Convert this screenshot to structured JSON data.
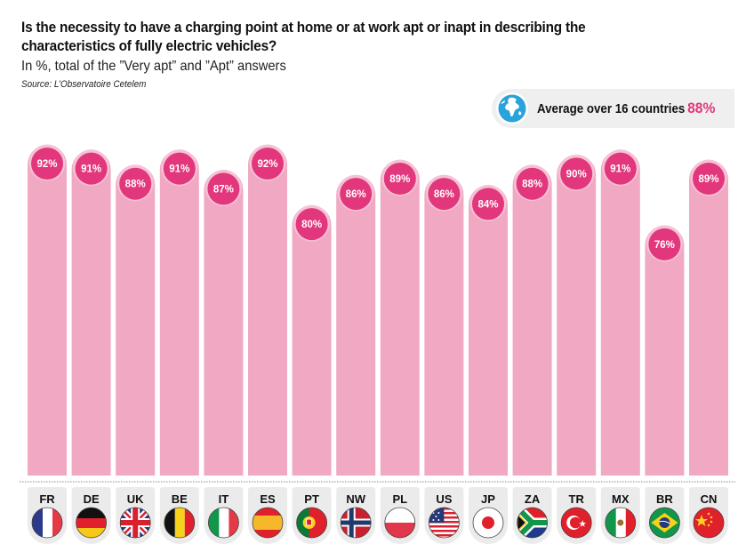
{
  "header": {
    "title": "Is the necessity to have a charging point at home or at work apt or inapt in describing the characteristics of fully electric vehicles?",
    "subtitle": "In %, total of the ”Very apt” and ”Apt” answers",
    "source": "Source: L’Observatoire Cetelem"
  },
  "average": {
    "icon": "globe-icon",
    "label": "Average over 16 countries",
    "value": "88%"
  },
  "colors": {
    "bar": "#f1a9c3",
    "bubble": "#e2377c",
    "bubble_ring": "#f5c3d6",
    "label_tab": "#ebebeb"
  },
  "chart_data": {
    "type": "bar",
    "title": "Is the necessity to have a charging point at home or at work apt or inapt in describing the characteristics of fully electric vehicles?",
    "subtitle": "In %, total of the ”Very apt” and ”Apt” answers",
    "xlabel": "",
    "ylabel": "",
    "unit": "%",
    "categories": [
      "FR",
      "DE",
      "UK",
      "BE",
      "IT",
      "ES",
      "PT",
      "NW",
      "PL",
      "US",
      "JP",
      "ZA",
      "TR",
      "MX",
      "BR",
      "CN"
    ],
    "values": [
      92,
      91,
      88,
      91,
      87,
      92,
      80,
      86,
      89,
      86,
      84,
      88,
      90,
      91,
      76,
      89
    ],
    "flags": [
      "france-flag",
      "germany-flag",
      "uk-flag",
      "belgium-flag",
      "italy-flag",
      "spain-flag",
      "portugal-flag",
      "norway-flag",
      "poland-flag",
      "usa-flag",
      "japan-flag",
      "south-africa-flag",
      "turkey-flag",
      "mexico-flag",
      "brazil-flag",
      "china-flag"
    ],
    "average": 88,
    "grid": false,
    "legend": "none",
    "ylim": [
      26.5,
      92
    ]
  }
}
